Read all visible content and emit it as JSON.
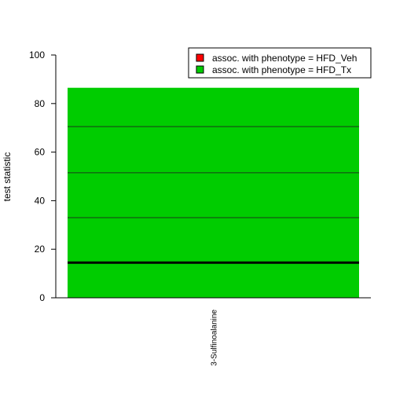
{
  "chart_data": {
    "type": "bar",
    "categories": [
      "3-Sulfinoalanine"
    ],
    "values": [
      86.5
    ],
    "ylabel": "test statistic",
    "xlabel": "",
    "ylim": [
      0,
      100
    ],
    "yticks": [
      "0",
      "20",
      "40",
      "60",
      "80",
      "100"
    ],
    "permutation_lines": [
      33,
      51.5,
      70.5
    ],
    "threshold": 14.5,
    "bar_color": "#00CC00",
    "legend": {
      "placement": "top-right",
      "entries": [
        {
          "label": "assoc. with phenotype = HFD_Veh",
          "color": "#FF0000"
        },
        {
          "label": "assoc. with phenotype = HFD_Tx",
          "color": "#00CC00"
        }
      ]
    },
    "grid": false
  }
}
